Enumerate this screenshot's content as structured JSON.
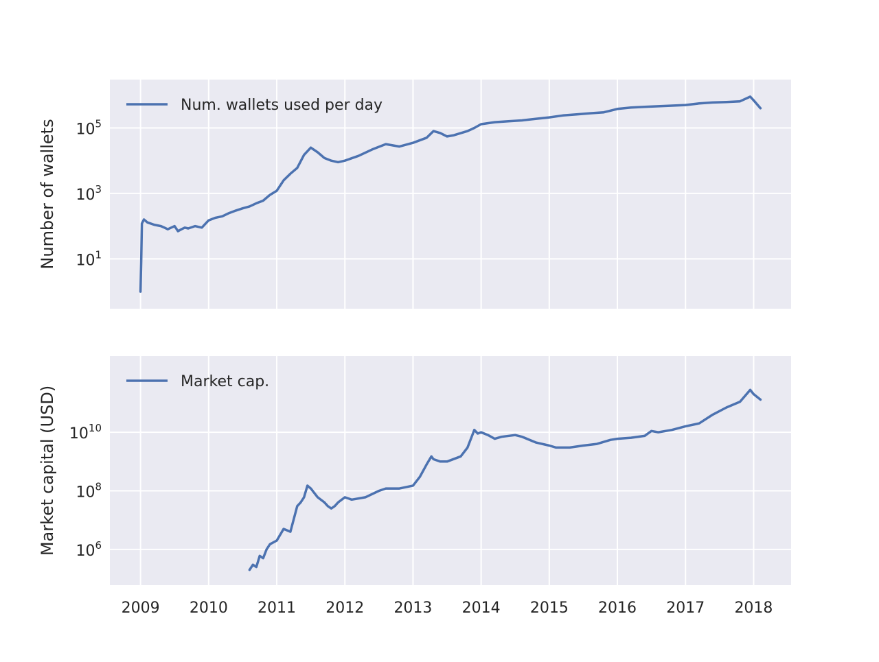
{
  "chart_data": [
    {
      "type": "line",
      "ylabel": "Number of wallets",
      "yscale": "log",
      "ytick_labels": [
        "10^1",
        "10^3",
        "10^5"
      ],
      "ytick_values": [
        10,
        1000,
        100000
      ],
      "ylim": [
        0.3,
        3000000
      ],
      "xlim": [
        2008.55,
        2018.55
      ],
      "grid": true,
      "legend_position": "top-left",
      "series": [
        {
          "name": "Num. wallets used per day",
          "color": "#4c72b0",
          "x": [
            2009.0,
            2009.01,
            2009.02,
            2009.05,
            2009.1,
            2009.2,
            2009.3,
            2009.35,
            2009.4,
            2009.45,
            2009.5,
            2009.55,
            2009.6,
            2009.65,
            2009.7,
            2009.8,
            2009.9,
            2010.0,
            2010.1,
            2010.2,
            2010.3,
            2010.4,
            2010.5,
            2010.6,
            2010.7,
            2010.8,
            2010.9,
            2011.0,
            2011.1,
            2011.2,
            2011.3,
            2011.4,
            2011.5,
            2011.6,
            2011.7,
            2011.8,
            2011.9,
            2012.0,
            2012.2,
            2012.4,
            2012.6,
            2012.8,
            2013.0,
            2013.2,
            2013.3,
            2013.4,
            2013.5,
            2013.6,
            2013.8,
            2013.9,
            2014.0,
            2014.2,
            2014.4,
            2014.6,
            2014.8,
            2015.0,
            2015.2,
            2015.4,
            2015.6,
            2015.8,
            2016.0,
            2016.2,
            2016.4,
            2016.6,
            2016.8,
            2017.0,
            2017.2,
            2017.4,
            2017.6,
            2017.8,
            2017.95,
            2018.0,
            2018.1
          ],
          "y": [
            1,
            8,
            120,
            160,
            130,
            110,
            100,
            90,
            80,
            90,
            100,
            70,
            80,
            90,
            85,
            100,
            90,
            150,
            180,
            200,
            250,
            300,
            350,
            400,
            500,
            600,
            900,
            1200,
            2500,
            4000,
            6000,
            15000,
            25000,
            18000,
            12000,
            10000,
            9000,
            10000,
            14000,
            22000,
            32000,
            27000,
            35000,
            50000,
            80000,
            70000,
            55000,
            60000,
            80000,
            100000,
            130000,
            150000,
            160000,
            170000,
            190000,
            210000,
            240000,
            260000,
            280000,
            300000,
            380000,
            420000,
            440000,
            460000,
            480000,
            500000,
            560000,
            600000,
            620000,
            650000,
            900000,
            700000,
            400000
          ]
        }
      ]
    },
    {
      "type": "line",
      "ylabel": "Market capital (USD)",
      "yscale": "log",
      "ytick_labels": [
        "10^6",
        "10^8",
        "10^10"
      ],
      "ytick_values": [
        1000000,
        100000000,
        10000000000
      ],
      "ylim": [
        60000,
        4000000000000
      ],
      "xlim": [
        2008.55,
        2018.55
      ],
      "grid": true,
      "legend_position": "top-left",
      "series": [
        {
          "name": "Market cap.",
          "color": "#4c72b0",
          "x": [
            2010.6,
            2010.65,
            2010.7,
            2010.75,
            2010.8,
            2010.85,
            2010.9,
            2011.0,
            2011.1,
            2011.2,
            2011.3,
            2011.35,
            2011.4,
            2011.45,
            2011.5,
            2011.6,
            2011.7,
            2011.75,
            2011.8,
            2011.85,
            2011.9,
            2012.0,
            2012.1,
            2012.3,
            2012.5,
            2012.6,
            2012.8,
            2013.0,
            2013.1,
            2013.2,
            2013.27,
            2013.3,
            2013.4,
            2013.5,
            2013.7,
            2013.8,
            2013.9,
            2013.95,
            2014.0,
            2014.1,
            2014.2,
            2014.3,
            2014.5,
            2014.6,
            2014.8,
            2015.0,
            2015.1,
            2015.3,
            2015.5,
            2015.7,
            2015.9,
            2016.0,
            2016.2,
            2016.4,
            2016.5,
            2016.6,
            2016.8,
            2017.0,
            2017.2,
            2017.4,
            2017.6,
            2017.8,
            2017.95,
            2018.0,
            2018.1
          ],
          "y": [
            200000,
            300000,
            250000,
            600000,
            500000,
            1000000,
            1500000,
            2000000,
            5000000,
            4000000,
            30000000,
            40000000,
            60000000,
            150000000,
            120000000,
            60000000,
            40000000,
            30000000,
            25000000,
            30000000,
            40000000,
            60000000,
            50000000,
            60000000,
            100000000,
            120000000,
            120000000,
            150000000,
            300000000,
            800000000,
            1500000000,
            1200000000,
            1000000000,
            1000000000,
            1500000000,
            3000000000,
            12000000000,
            9000000000,
            10000000000,
            8000000000,
            6000000000,
            7000000000,
            8000000000,
            7000000000,
            4500000000,
            3500000000,
            3000000000,
            3000000000,
            3500000000,
            4000000000,
            5500000000,
            6000000000,
            6500000000,
            7500000000,
            11000000000,
            10000000000,
            12000000000,
            16000000000,
            20000000000,
            40000000000,
            70000000000,
            110000000000,
            280000000000,
            200000000000,
            130000000000
          ]
        }
      ]
    }
  ],
  "x_tick_labels": [
    "2009",
    "2010",
    "2011",
    "2012",
    "2013",
    "2014",
    "2015",
    "2016",
    "2017",
    "2018"
  ],
  "x_tick_values": [
    2009,
    2010,
    2011,
    2012,
    2013,
    2014,
    2015,
    2016,
    2017,
    2018
  ]
}
